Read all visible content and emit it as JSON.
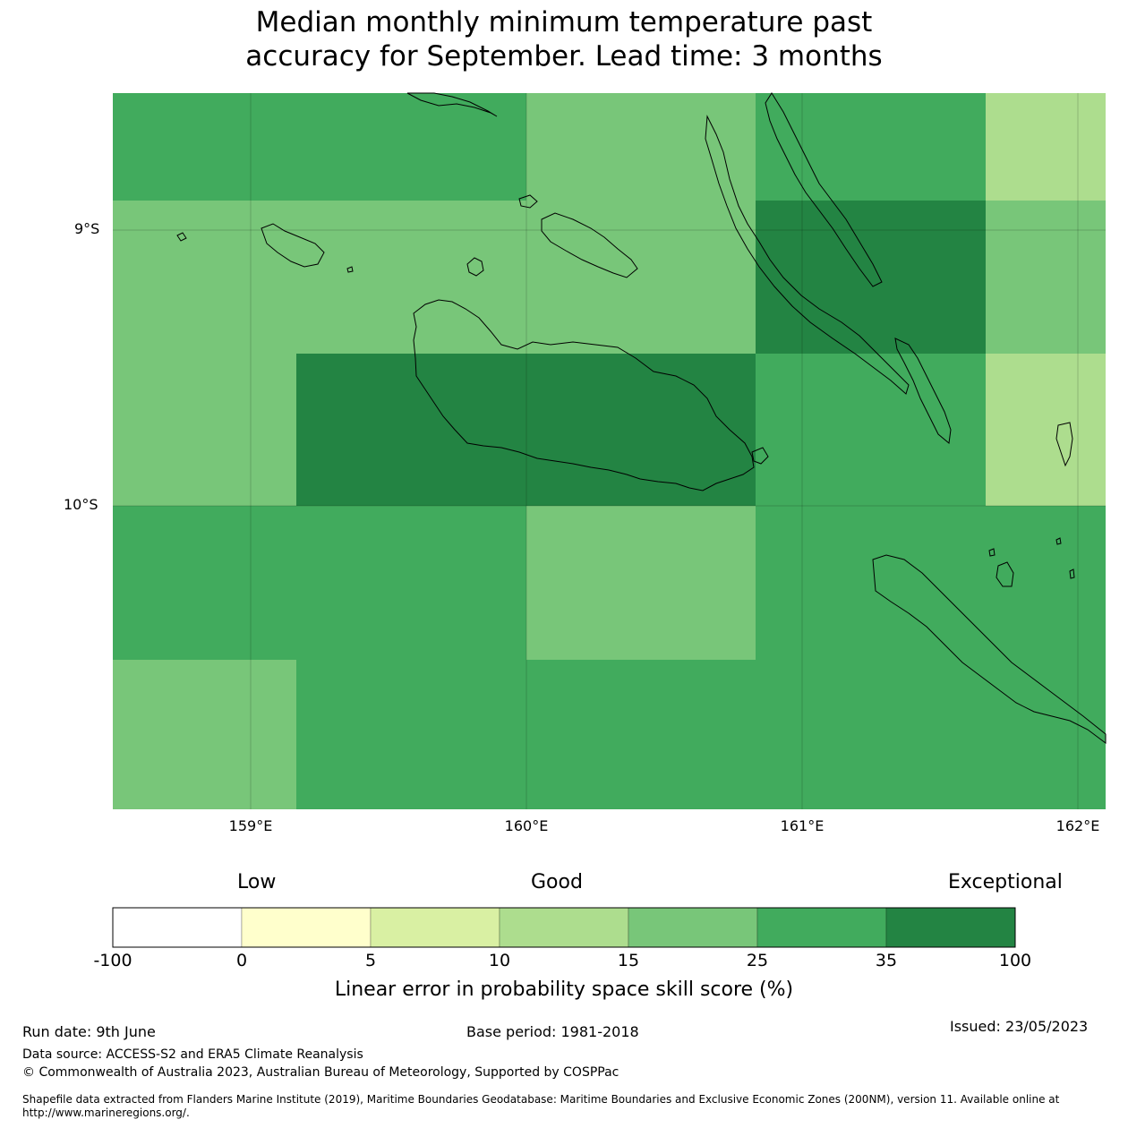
{
  "title_line1": "Median monthly minimum temperature past",
  "title_line2": "accuracy for September. Lead time: 3 months",
  "map": {
    "lat_labels": [
      "9°S",
      "10°S"
    ],
    "lon_labels": [
      "159°E",
      "160°E",
      "161°E",
      "162°E"
    ],
    "colors": {
      "c0": "#ffffcc",
      "c5": "#d9f0a3",
      "c10": "#addd8e",
      "c15": "#78c679",
      "c25": "#41ab5d",
      "c35": "#238443",
      "none": "#ffffff"
    }
  },
  "colorbar": {
    "categories": [
      "Low",
      "Good",
      "Exceptional"
    ],
    "ticks": [
      "-100",
      "0",
      "5",
      "10",
      "15",
      "25",
      "35",
      "100"
    ],
    "label": "Linear error in probability space skill score (%)"
  },
  "footer": {
    "run_date": "Run date: 9th June",
    "base_period": "Base period: 1981-2018",
    "issued": "Issued: 23/05/2023",
    "data_source": "Data source: ACCESS-S2 and ERA5 Climate Reanalysis",
    "copyright": "© Commonwealth of Australia 2023, Australian Bureau of Meteorology, Supported by COSPPac",
    "shapefile": "Shapefile data extracted from Flanders Marine Institute (2019), Maritime Boundaries Geodatabase: Maritime Boundaries and Exclusive Economic Zones (200NM), version 11. Available online at http://www.marineregions.org/."
  }
}
